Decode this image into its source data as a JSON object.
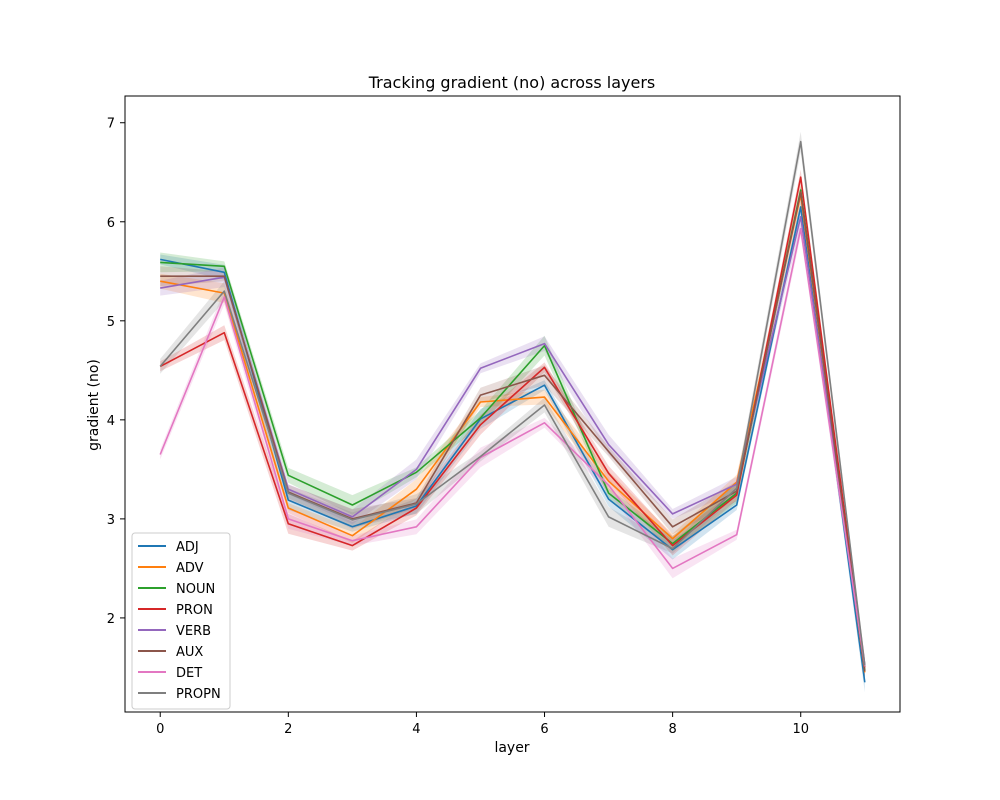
{
  "chart_data": {
    "type": "line",
    "title": "Tracking gradient (no) across layers",
    "xlabel": "layer",
    "ylabel": "gradient (no)",
    "xlim": [
      -0.55,
      11.55
    ],
    "ylim": [
      1.05,
      7.27
    ],
    "xticks": [
      0,
      2,
      4,
      6,
      8,
      10
    ],
    "yticks": [
      2,
      3,
      4,
      5,
      6,
      7
    ],
    "grid": false,
    "legend_position": "lower-left",
    "confidence_bands": true,
    "x": [
      0,
      1,
      2,
      3,
      4,
      5,
      6,
      7,
      8,
      9,
      10,
      11
    ],
    "series": [
      {
        "name": "ADJ",
        "color": "#1f77b4",
        "values": [
          5.62,
          5.49,
          3.19,
          2.92,
          3.13,
          4.01,
          4.35,
          3.2,
          2.69,
          3.14,
          6.15,
          1.35
        ]
      },
      {
        "name": "ADV",
        "color": "#ff7f0e",
        "values": [
          5.4,
          5.28,
          3.11,
          2.83,
          3.3,
          4.18,
          4.23,
          3.38,
          2.8,
          3.37,
          6.27,
          1.45
        ]
      },
      {
        "name": "NOUN",
        "color": "#2ca02c",
        "values": [
          5.59,
          5.55,
          3.44,
          3.14,
          3.47,
          4.02,
          4.75,
          3.26,
          2.75,
          3.26,
          6.32,
          1.47
        ]
      },
      {
        "name": "PRON",
        "color": "#d62728",
        "values": [
          4.54,
          4.88,
          2.95,
          2.73,
          3.11,
          3.95,
          4.53,
          3.46,
          2.73,
          3.24,
          6.45,
          1.5
        ]
      },
      {
        "name": "VERB",
        "color": "#9467bd",
        "values": [
          5.33,
          5.44,
          3.3,
          3.02,
          3.5,
          4.52,
          4.77,
          3.75,
          3.05,
          3.35,
          6.05,
          1.53
        ]
      },
      {
        "name": "AUX",
        "color": "#8c564b",
        "values": [
          5.45,
          5.45,
          3.27,
          3.0,
          3.16,
          4.25,
          4.45,
          3.68,
          2.92,
          3.28,
          6.3,
          1.46
        ]
      },
      {
        "name": "DET",
        "color": "#e377c2",
        "values": [
          3.65,
          5.24,
          3.0,
          2.78,
          2.92,
          3.62,
          3.97,
          3.34,
          2.5,
          2.84,
          5.93,
          1.51
        ]
      },
      {
        "name": "PROPN",
        "color": "#7f7f7f",
        "values": [
          4.54,
          5.3,
          3.26,
          2.99,
          3.15,
          3.63,
          4.15,
          3.02,
          2.7,
          3.31,
          6.81,
          1.52
        ]
      }
    ]
  }
}
